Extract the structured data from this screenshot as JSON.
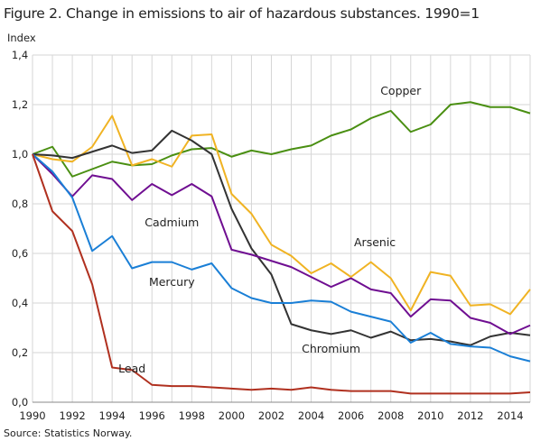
{
  "chart_data": {
    "type": "line",
    "title": "Figure 2. Change in emissions to air of hazardous substances. 1990=1",
    "ylabel": "Index",
    "xlabel": "",
    "source": "Source: Statistics Norway.",
    "ylim": [
      0,
      1.4
    ],
    "xlim": [
      1990,
      2015
    ],
    "yticks": [
      "0,0",
      "0,2",
      "0,4",
      "0,6",
      "0,8",
      "1,0",
      "1,2",
      "1,4"
    ],
    "xticks": [
      "1990",
      "1992",
      "1994",
      "1996",
      "1998",
      "2000",
      "2002",
      "2004",
      "2006",
      "2008",
      "2010",
      "2012",
      "2014"
    ],
    "grid": true,
    "x": [
      1990,
      1991,
      1992,
      1993,
      1994,
      1995,
      1996,
      1997,
      1998,
      1999,
      2000,
      2001,
      2002,
      2003,
      2004,
      2005,
      2006,
      2007,
      2008,
      2009,
      2010,
      2011,
      2012,
      2013,
      2014,
      2015
    ],
    "series": [
      {
        "name": "Copper",
        "color": "#4a8f12",
        "values": [
          1.0,
          1.03,
          0.91,
          0.94,
          0.97,
          0.955,
          0.96,
          0.995,
          1.02,
          1.025,
          0.99,
          1.015,
          1.0,
          1.02,
          1.035,
          1.075,
          1.1,
          1.145,
          1.175,
          1.09,
          1.12,
          1.2,
          1.21,
          1.19,
          1.19,
          1.165
        ]
      },
      {
        "name": "Arsenic",
        "color": "#f0b323",
        "values": [
          1.0,
          0.98,
          0.97,
          1.03,
          1.155,
          0.955,
          0.98,
          0.95,
          1.075,
          1.08,
          0.84,
          0.76,
          0.635,
          0.59,
          0.52,
          0.56,
          0.505,
          0.565,
          0.5,
          0.37,
          0.525,
          0.51,
          0.39,
          0.395,
          0.355,
          0.455
        ]
      },
      {
        "name": "Chromium",
        "color": "#333333",
        "values": [
          1.0,
          0.995,
          0.985,
          1.01,
          1.035,
          1.005,
          1.015,
          1.095,
          1.055,
          1.0,
          0.78,
          0.62,
          0.515,
          0.315,
          0.29,
          0.275,
          0.29,
          0.26,
          0.285,
          0.25,
          0.255,
          0.245,
          0.23,
          0.265,
          0.28,
          0.27
        ]
      },
      {
        "name": "Cadmium",
        "color": "#6f0e91",
        "values": [
          1.0,
          0.92,
          0.83,
          0.915,
          0.9,
          0.815,
          0.88,
          0.835,
          0.88,
          0.83,
          0.615,
          0.595,
          0.57,
          0.545,
          0.505,
          0.465,
          0.5,
          0.455,
          0.44,
          0.345,
          0.415,
          0.41,
          0.34,
          0.32,
          0.275,
          0.31
        ]
      },
      {
        "name": "Mercury",
        "color": "#1a7fd6",
        "values": [
          1.0,
          0.93,
          0.825,
          0.61,
          0.67,
          0.54,
          0.565,
          0.565,
          0.535,
          0.56,
          0.46,
          0.42,
          0.4,
          0.4,
          0.41,
          0.405,
          0.365,
          0.345,
          0.325,
          0.24,
          0.28,
          0.235,
          0.225,
          0.22,
          0.185,
          0.165
        ]
      },
      {
        "name": "Lead",
        "color": "#b0301f",
        "values": [
          1.0,
          0.77,
          0.69,
          0.475,
          0.14,
          0.13,
          0.07,
          0.065,
          0.065,
          0.06,
          0.055,
          0.05,
          0.055,
          0.05,
          0.06,
          0.05,
          0.045,
          0.045,
          0.045,
          0.035,
          0.035,
          0.035,
          0.035,
          0.035,
          0.035,
          0.04
        ]
      }
    ]
  }
}
